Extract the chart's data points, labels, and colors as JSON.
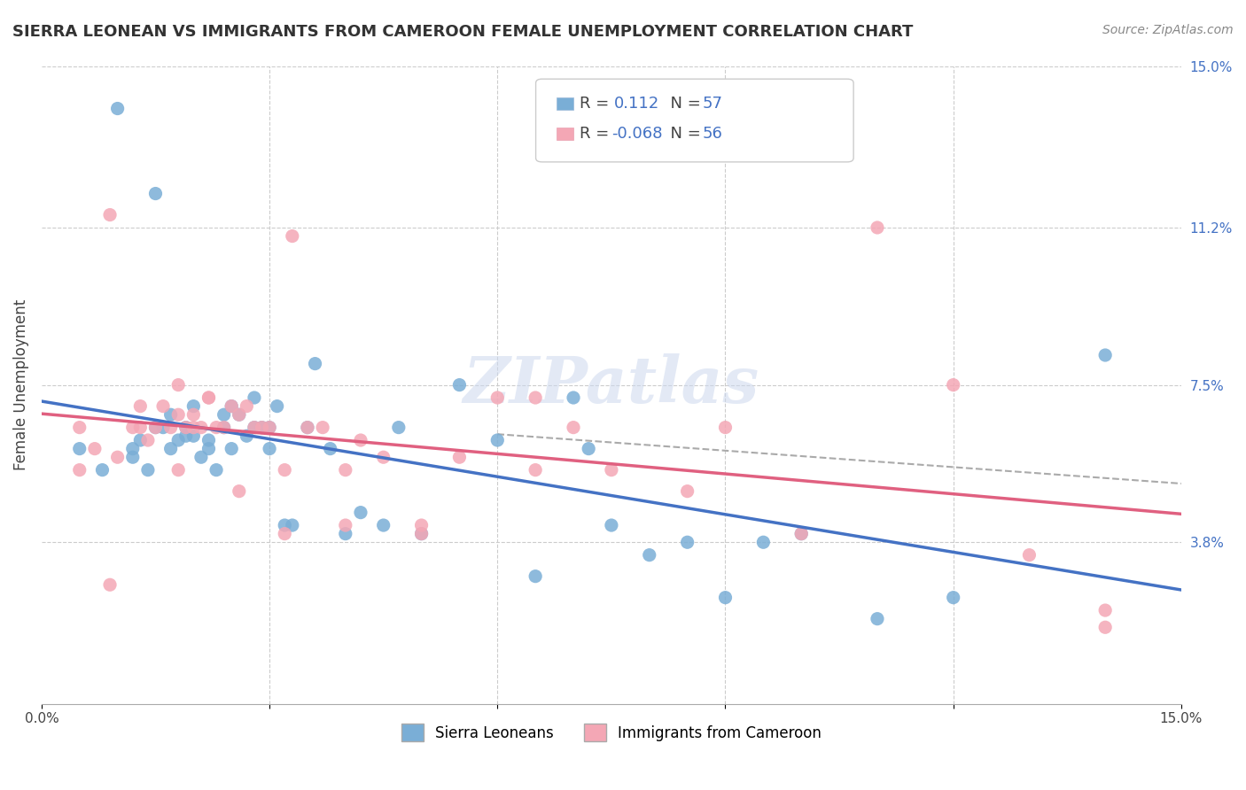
{
  "title": "SIERRA LEONEAN VS IMMIGRANTS FROM CAMEROON FEMALE UNEMPLOYMENT CORRELATION CHART",
  "source": "Source: ZipAtlas.com",
  "ylabel": "Female Unemployment",
  "xlim": [
    0.0,
    0.15
  ],
  "ylim": [
    0.0,
    0.15
  ],
  "ytick_labels_right": [
    "15.0%",
    "11.2%",
    "7.5%",
    "3.8%"
  ],
  "ytick_vals_right": [
    0.15,
    0.112,
    0.075,
    0.038
  ],
  "blue_color": "#7aaed6",
  "pink_color": "#f4a7b5",
  "trend_blue": "#4472c4",
  "trend_pink": "#e06080",
  "watermark": "ZIPatlas",
  "blue_scatter_x": [
    0.005,
    0.008,
    0.01,
    0.012,
    0.012,
    0.013,
    0.014,
    0.015,
    0.015,
    0.016,
    0.017,
    0.017,
    0.018,
    0.019,
    0.019,
    0.02,
    0.02,
    0.021,
    0.022,
    0.022,
    0.023,
    0.024,
    0.024,
    0.025,
    0.025,
    0.026,
    0.027,
    0.028,
    0.028,
    0.029,
    0.03,
    0.03,
    0.031,
    0.032,
    0.033,
    0.035,
    0.036,
    0.038,
    0.04,
    0.042,
    0.045,
    0.047,
    0.05,
    0.055,
    0.06,
    0.065,
    0.07,
    0.072,
    0.075,
    0.08,
    0.085,
    0.09,
    0.095,
    0.1,
    0.11,
    0.12,
    0.14
  ],
  "blue_scatter_y": [
    0.06,
    0.055,
    0.14,
    0.058,
    0.06,
    0.062,
    0.055,
    0.12,
    0.065,
    0.065,
    0.068,
    0.06,
    0.062,
    0.063,
    0.065,
    0.063,
    0.07,
    0.058,
    0.062,
    0.06,
    0.055,
    0.065,
    0.068,
    0.07,
    0.06,
    0.068,
    0.063,
    0.072,
    0.065,
    0.065,
    0.06,
    0.065,
    0.07,
    0.042,
    0.042,
    0.065,
    0.08,
    0.06,
    0.04,
    0.045,
    0.042,
    0.065,
    0.04,
    0.075,
    0.062,
    0.03,
    0.072,
    0.06,
    0.042,
    0.035,
    0.038,
    0.025,
    0.038,
    0.04,
    0.02,
    0.025,
    0.082
  ],
  "pink_scatter_x": [
    0.005,
    0.007,
    0.009,
    0.01,
    0.012,
    0.013,
    0.014,
    0.015,
    0.016,
    0.017,
    0.018,
    0.018,
    0.019,
    0.02,
    0.02,
    0.021,
    0.022,
    0.023,
    0.024,
    0.025,
    0.026,
    0.027,
    0.028,
    0.029,
    0.03,
    0.032,
    0.033,
    0.035,
    0.037,
    0.04,
    0.042,
    0.045,
    0.05,
    0.055,
    0.06,
    0.065,
    0.07,
    0.075,
    0.085,
    0.09,
    0.1,
    0.11,
    0.12,
    0.13,
    0.14,
    0.005,
    0.009,
    0.013,
    0.018,
    0.022,
    0.026,
    0.032,
    0.04,
    0.05,
    0.065,
    0.14
  ],
  "pink_scatter_y": [
    0.065,
    0.06,
    0.115,
    0.058,
    0.065,
    0.065,
    0.062,
    0.065,
    0.07,
    0.065,
    0.075,
    0.068,
    0.065,
    0.065,
    0.068,
    0.065,
    0.072,
    0.065,
    0.065,
    0.07,
    0.068,
    0.07,
    0.065,
    0.065,
    0.065,
    0.055,
    0.11,
    0.065,
    0.065,
    0.055,
    0.062,
    0.058,
    0.04,
    0.058,
    0.072,
    0.055,
    0.065,
    0.055,
    0.05,
    0.065,
    0.04,
    0.112,
    0.075,
    0.035,
    0.018,
    0.055,
    0.028,
    0.07,
    0.055,
    0.072,
    0.05,
    0.04,
    0.042,
    0.042,
    0.072,
    0.022
  ]
}
